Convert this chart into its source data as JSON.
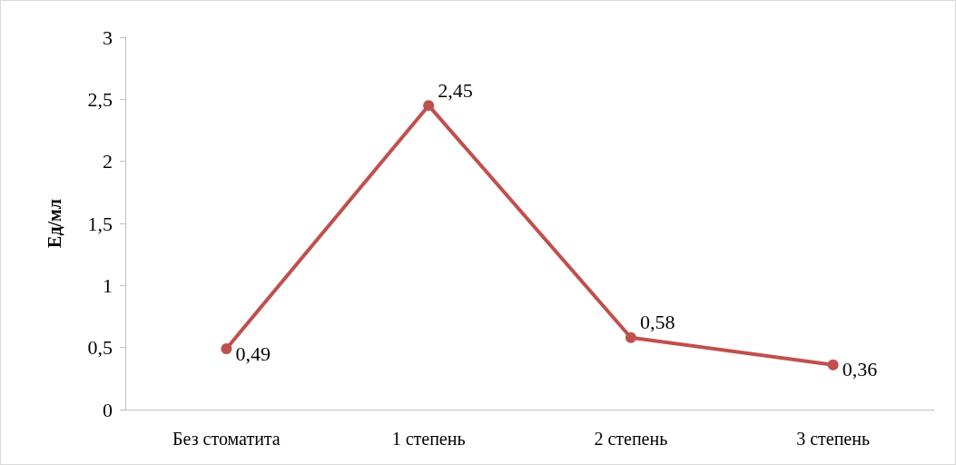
{
  "chart_data": {
    "type": "line",
    "ylabel": "Ед/мл",
    "categories": [
      "Без стоматита",
      "1 степень",
      "2 степень",
      "3 степень"
    ],
    "series": [
      {
        "color": "#c0504d",
        "values": [
          0.49,
          2.45,
          0.58,
          0.36
        ],
        "value_labels": [
          "0,49",
          "2,45",
          "0,58",
          "0,36"
        ]
      }
    ],
    "ylim": [
      0,
      3
    ],
    "yticks": [
      0,
      {
        "value": 0.5,
        "label": "0,5"
      },
      1,
      {
        "value": 1.5,
        "label": "1,5"
      },
      2,
      {
        "value": 2.5,
        "label": "2,5"
      },
      3
    ],
    "marker": "circle",
    "line_style": "solid"
  }
}
